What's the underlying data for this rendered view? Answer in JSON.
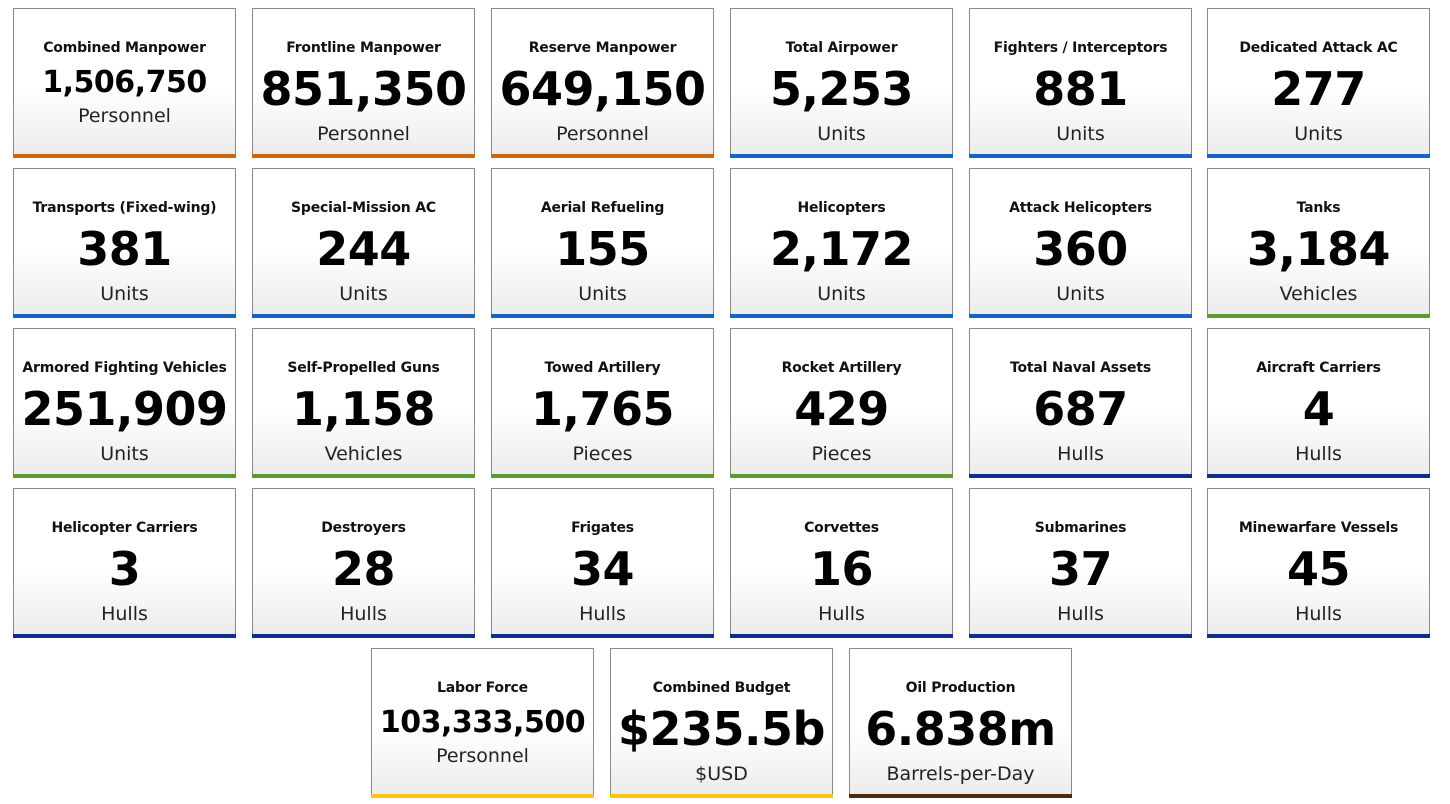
{
  "colors": {
    "manpower": "#c8680a",
    "air": "#1565c0",
    "land": "#5d9a2e",
    "naval": "#0d2f8a",
    "labor": "#f5c518",
    "oil": "#4a2a10"
  },
  "cards": [
    {
      "label": "Combined Manpower",
      "value": "1,506,750",
      "unit": "Personnel",
      "category": "manpower"
    },
    {
      "label": "Frontline Manpower",
      "value": "851,350",
      "unit": "Personnel",
      "category": "manpower"
    },
    {
      "label": "Reserve Manpower",
      "value": "649,150",
      "unit": "Personnel",
      "category": "manpower"
    },
    {
      "label": "Total Airpower",
      "value": "5,253",
      "unit": "Units",
      "category": "air"
    },
    {
      "label": "Fighters / Interceptors",
      "value": "881",
      "unit": "Units",
      "category": "air"
    },
    {
      "label": "Dedicated Attack AC",
      "value": "277",
      "unit": "Units",
      "category": "air"
    },
    {
      "label": "Transports (Fixed-wing)",
      "value": "381",
      "unit": "Units",
      "category": "air"
    },
    {
      "label": "Special-Mission AC",
      "value": "244",
      "unit": "Units",
      "category": "air"
    },
    {
      "label": "Aerial Refueling",
      "value": "155",
      "unit": "Units",
      "category": "air"
    },
    {
      "label": "Helicopters",
      "value": "2,172",
      "unit": "Units",
      "category": "air"
    },
    {
      "label": "Attack Helicopters",
      "value": "360",
      "unit": "Units",
      "category": "air"
    },
    {
      "label": "Tanks",
      "value": "3,184",
      "unit": "Vehicles",
      "category": "land"
    },
    {
      "label": "Armored Fighting Vehicles",
      "value": "251,909",
      "unit": "Units",
      "category": "land"
    },
    {
      "label": "Self-Propelled Guns",
      "value": "1,158",
      "unit": "Vehicles",
      "category": "land"
    },
    {
      "label": "Towed Artillery",
      "value": "1,765",
      "unit": "Pieces",
      "category": "land"
    },
    {
      "label": "Rocket Artillery",
      "value": "429",
      "unit": "Pieces",
      "category": "land"
    },
    {
      "label": "Total Naval Assets",
      "value": "687",
      "unit": "Hulls",
      "category": "naval"
    },
    {
      "label": "Aircraft Carriers",
      "value": "4",
      "unit": "Hulls",
      "category": "naval"
    },
    {
      "label": "Helicopter Carriers",
      "value": "3",
      "unit": "Hulls",
      "category": "naval"
    },
    {
      "label": "Destroyers",
      "value": "28",
      "unit": "Hulls",
      "category": "naval"
    },
    {
      "label": "Frigates",
      "value": "34",
      "unit": "Hulls",
      "category": "naval"
    },
    {
      "label": "Corvettes",
      "value": "16",
      "unit": "Hulls",
      "category": "naval"
    },
    {
      "label": "Submarines",
      "value": "37",
      "unit": "Hulls",
      "category": "naval"
    },
    {
      "label": "Minewarfare Vessels",
      "value": "45",
      "unit": "Hulls",
      "category": "naval"
    },
    {
      "label": "Labor Force",
      "value": "103,333,500",
      "unit": "Personnel",
      "category": "labor"
    },
    {
      "label": "Combined Budget",
      "value": "$235.5b",
      "unit": "$USD",
      "category": "labor"
    },
    {
      "label": "Oil Production",
      "value": "6.838m",
      "unit": "Barrels-per-Day",
      "category": "oil"
    }
  ]
}
